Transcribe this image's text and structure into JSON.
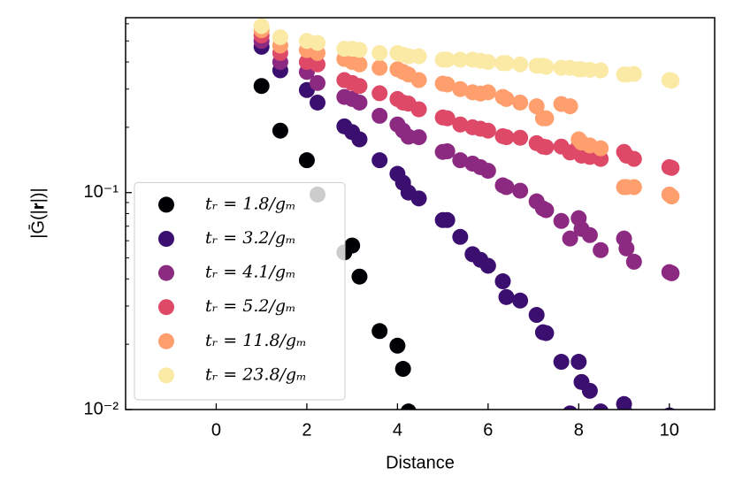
{
  "chart_data": {
    "type": "scatter",
    "xlabel": "Distance",
    "ylabel": "|Ḡ(|𝐫|)|",
    "xlim": [
      -2,
      11
    ],
    "ylim": [
      0.01,
      0.64
    ],
    "yscale": "log",
    "xticks": [
      0,
      2,
      4,
      6,
      8,
      10
    ],
    "yticks": [
      {
        "value": 0.01,
        "label": "10⁻²"
      },
      {
        "value": 0.1,
        "label": "10⁻¹"
      }
    ],
    "yminorticks": [
      0.02,
      0.03,
      0.04,
      0.05,
      0.06,
      0.07,
      0.08,
      0.09,
      0.2,
      0.3,
      0.4,
      0.5,
      0.6
    ],
    "legend": "lower left",
    "series": [
      {
        "name": "tᵣ = 1.8/gₘ",
        "color": "#000004",
        "x": [
          1,
          1.414,
          2,
          2.236,
          2.828,
          3,
          3.162,
          3.606,
          4,
          4.123,
          4.243
        ],
        "values": [
          0.31,
          0.193,
          0.141,
          0.098,
          0.053,
          0.057,
          0.041,
          0.023,
          0.0197,
          0.0154,
          0.0098
        ]
      },
      {
        "name": "tᵣ = 3.2/gₘ",
        "color": "#3b0f70",
        "x": [
          1,
          1.414,
          2,
          2.236,
          2.828,
          3,
          3.162,
          3.606,
          4,
          4.123,
          4.243,
          4.472,
          5,
          5.099,
          5.385,
          5.657,
          5.831,
          6,
          6.325,
          6.403,
          6.708,
          7.071,
          7.211,
          7.28,
          7.616,
          7.81,
          8,
          8.062,
          8.246,
          8.485,
          9,
          9.055,
          9.22,
          10,
          10.05
        ],
        "values": [
          0.47,
          0.366,
          0.297,
          0.26,
          0.202,
          0.19,
          0.176,
          0.141,
          0.122,
          0.111,
          0.1,
          0.094,
          0.0747,
          0.0747,
          0.0625,
          0.052,
          0.049,
          0.046,
          0.039,
          0.033,
          0.0318,
          0.0273,
          0.0227,
          0.0225,
          0.0166,
          0.0096,
          0.0166,
          0.0134,
          0.0122,
          0.0098,
          0.0106,
          0.0095,
          0.0092,
          0.0094,
          0.0093
        ]
      },
      {
        "name": "tᵣ = 4.1/gₘ",
        "color": "#8c2981",
        "x": [
          1,
          1.414,
          2,
          2.236,
          2.828,
          3,
          3.162,
          3.606,
          4,
          4.123,
          4.243,
          4.472,
          5,
          5.099,
          5.385,
          5.657,
          5.831,
          6,
          6.325,
          6.403,
          6.708,
          7.071,
          7.211,
          7.28,
          7.616,
          7.81,
          8,
          8.062,
          8.246,
          8.485,
          9,
          9.055,
          9.22,
          10,
          10.05
        ],
        "values": [
          0.5,
          0.4,
          0.36,
          0.32,
          0.276,
          0.27,
          0.26,
          0.226,
          0.206,
          0.193,
          0.181,
          0.18,
          0.154,
          0.155,
          0.141,
          0.136,
          0.131,
          0.126,
          0.108,
          0.106,
          0.102,
          0.0911,
          0.0845,
          0.083,
          0.074,
          0.0614,
          0.0762,
          0.068,
          0.0637,
          0.0543,
          0.0614,
          0.0553,
          0.048,
          0.043,
          0.0425
        ]
      },
      {
        "name": "tᵣ = 5.2/gₘ",
        "color": "#de4968",
        "x": [
          1,
          1.414,
          2,
          2.236,
          2.828,
          3,
          3.162,
          3.606,
          4,
          4.123,
          4.243,
          4.472,
          5,
          5.099,
          5.385,
          5.657,
          5.831,
          6,
          6.325,
          6.403,
          6.708,
          7.071,
          7.211,
          7.28,
          7.616,
          7.81,
          8,
          8.062,
          8.246,
          8.485,
          9,
          9.055,
          9.22,
          10,
          10.05
        ],
        "values": [
          0.53,
          0.44,
          0.4,
          0.39,
          0.33,
          0.32,
          0.31,
          0.287,
          0.27,
          0.26,
          0.257,
          0.242,
          0.222,
          0.22,
          0.206,
          0.2,
          0.197,
          0.193,
          0.182,
          0.18,
          0.179,
          0.169,
          0.163,
          0.162,
          0.163,
          0.153,
          0.164,
          0.148,
          0.146,
          0.143,
          0.154,
          0.148,
          0.143,
          0.131,
          0.13
        ]
      },
      {
        "name": "tᵣ = 11.8/gₘ",
        "color": "#fe9f6d",
        "x": [
          1,
          1.414,
          2,
          2.236,
          2.828,
          3,
          3.162,
          3.606,
          4,
          4.123,
          4.243,
          4.472,
          5,
          5.099,
          5.385,
          5.657,
          5.831,
          6,
          6.325,
          6.403,
          6.708,
          7.071,
          7.211,
          7.28,
          7.616,
          7.81,
          8,
          8.062,
          8.246,
          8.485,
          9,
          9.055,
          9.22,
          10,
          10.05
        ],
        "values": [
          0.56,
          0.476,
          0.454,
          0.44,
          0.413,
          0.4,
          0.39,
          0.376,
          0.37,
          0.36,
          0.35,
          0.33,
          0.318,
          0.315,
          0.3,
          0.29,
          0.286,
          0.29,
          0.276,
          0.27,
          0.26,
          0.25,
          0.22,
          0.22,
          0.256,
          0.25,
          0.176,
          0.17,
          0.165,
          0.16,
          0.106,
          0.106,
          0.106,
          0.098,
          0.096
        ]
      },
      {
        "name": "tᵣ = 23.8/gₘ",
        "color": "#fbe9a6",
        "x": [
          1,
          1.414,
          2,
          2.236,
          2.828,
          3,
          3.162,
          3.606,
          4,
          4.123,
          4.243,
          4.472,
          5,
          5.099,
          5.385,
          5.657,
          5.831,
          6,
          6.325,
          6.403,
          6.708,
          7.071,
          7.211,
          7.28,
          7.616,
          7.81,
          8,
          8.062,
          8.246,
          8.485,
          9,
          9.055,
          9.22,
          10,
          10.05
        ],
        "values": [
          0.585,
          0.52,
          0.5,
          0.49,
          0.46,
          0.46,
          0.455,
          0.44,
          0.44,
          0.432,
          0.425,
          0.425,
          0.41,
          0.41,
          0.41,
          0.41,
          0.405,
          0.4,
          0.395,
          0.395,
          0.39,
          0.384,
          0.384,
          0.38,
          0.376,
          0.376,
          0.37,
          0.37,
          0.368,
          0.366,
          0.35,
          0.35,
          0.352,
          0.33,
          0.328
        ]
      }
    ]
  }
}
